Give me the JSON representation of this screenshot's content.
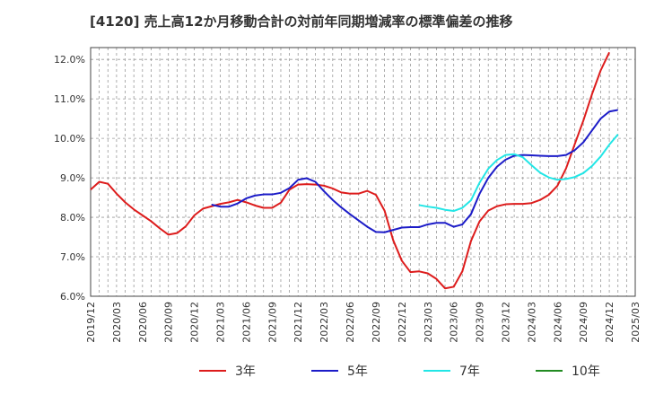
{
  "chart_data": {
    "type": "line",
    "title": "[4120]  売上高12か月移動合計の対前年同期増減率の標準偏差の推移",
    "xlabel": "",
    "ylabel": "",
    "ylim": [
      6.0,
      12.3
    ],
    "yticks": [
      6.0,
      7.0,
      8.0,
      9.0,
      10.0,
      11.0,
      12.0
    ],
    "ytick_labels": [
      "6.0%",
      "7.0%",
      "8.0%",
      "9.0%",
      "10.0%",
      "11.0%",
      "12.0%"
    ],
    "xticks": [
      "2019/12",
      "2020/03",
      "2020/06",
      "2020/09",
      "2020/12",
      "2021/03",
      "2021/06",
      "2021/09",
      "2021/12",
      "2022/03",
      "2022/06",
      "2022/09",
      "2022/12",
      "2023/03",
      "2023/06",
      "2023/09",
      "2023/12",
      "2024/03",
      "2024/06",
      "2024/09",
      "2024/12",
      "2025/03"
    ],
    "grid": true,
    "legend_position": "bottom",
    "series": [
      {
        "name": "3年",
        "color": "#dd1c1c",
        "start": "2019/12",
        "values": [
          8.7,
          8.9,
          8.85,
          8.6,
          8.38,
          8.2,
          8.05,
          7.9,
          7.72,
          7.56,
          7.6,
          7.77,
          8.05,
          8.22,
          8.28,
          8.34,
          8.38,
          8.44,
          8.38,
          8.3,
          8.24,
          8.24,
          8.37,
          8.7,
          8.83,
          8.84,
          8.83,
          8.8,
          8.73,
          8.63,
          8.6,
          8.6,
          8.67,
          8.57,
          8.17,
          7.42,
          6.9,
          6.61,
          6.63,
          6.58,
          6.44,
          6.2,
          6.24,
          6.63,
          7.4,
          7.9,
          8.17,
          8.28,
          8.33,
          8.34,
          8.34,
          8.36,
          8.44,
          8.57,
          8.8,
          9.24,
          9.85,
          10.45,
          11.12,
          11.72,
          12.18
        ]
      },
      {
        "name": "5年",
        "color": "#1c1cc8",
        "start": "2021/02",
        "values": [
          8.32,
          8.27,
          8.27,
          8.35,
          8.48,
          8.55,
          8.58,
          8.58,
          8.62,
          8.74,
          8.95,
          8.99,
          8.9,
          8.66,
          8.44,
          8.25,
          8.08,
          7.92,
          7.76,
          7.63,
          7.62,
          7.68,
          7.74,
          7.75,
          7.75,
          7.82,
          7.86,
          7.86,
          7.76,
          7.82,
          8.08,
          8.6,
          9.0,
          9.28,
          9.46,
          9.56,
          9.58,
          9.57,
          9.56,
          9.55,
          9.55,
          9.58,
          9.7,
          9.9,
          10.2,
          10.5,
          10.68,
          10.72
        ]
      },
      {
        "name": "7年",
        "color": "#22e6e6",
        "start": "2023/02",
        "values": [
          8.31,
          8.27,
          8.24,
          8.19,
          8.16,
          8.24,
          8.43,
          8.88,
          9.23,
          9.45,
          9.58,
          9.6,
          9.52,
          9.32,
          9.13,
          9.01,
          8.95,
          8.97,
          9.02,
          9.12,
          9.3,
          9.54,
          9.84,
          10.1
        ]
      },
      {
        "name": "10年",
        "color": "#228b22",
        "start": "2019/12",
        "values": []
      }
    ]
  }
}
